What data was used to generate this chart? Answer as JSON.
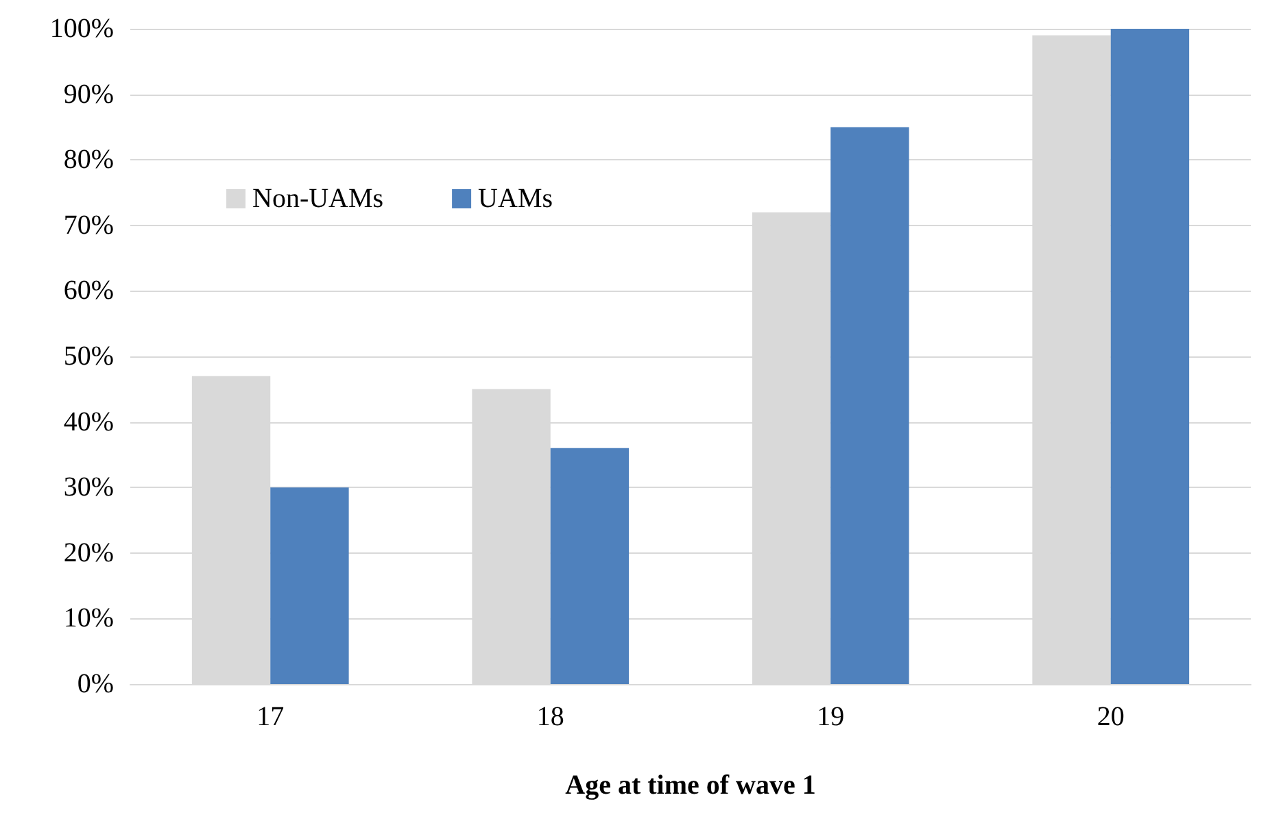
{
  "chart_data": {
    "type": "bar",
    "xlabel": "Age at time of wave 1",
    "categories": [
      "17",
      "18",
      "19",
      "20"
    ],
    "series": [
      {
        "name": "Non-UAMs",
        "color": "#d9d9d9",
        "values": [
          47,
          45,
          72,
          99
        ]
      },
      {
        "name": "UAMs",
        "color": "#4f81bd",
        "values": [
          30,
          36,
          85,
          100
        ]
      }
    ],
    "ylim": [
      0,
      100
    ],
    "yticks": [
      {
        "value": 0,
        "label": "0%"
      },
      {
        "value": 10,
        "label": "10%"
      },
      {
        "value": 20,
        "label": "20%"
      },
      {
        "value": 30,
        "label": "30%"
      },
      {
        "value": 40,
        "label": "40%"
      },
      {
        "value": 50,
        "label": "50%"
      },
      {
        "value": 60,
        "label": "60%"
      },
      {
        "value": 70,
        "label": "70%"
      },
      {
        "value": 80,
        "label": "80%"
      },
      {
        "value": 90,
        "label": "90%"
      },
      {
        "value": 100,
        "label": "100%"
      }
    ],
    "grid": "y",
    "legend": "top left"
  }
}
